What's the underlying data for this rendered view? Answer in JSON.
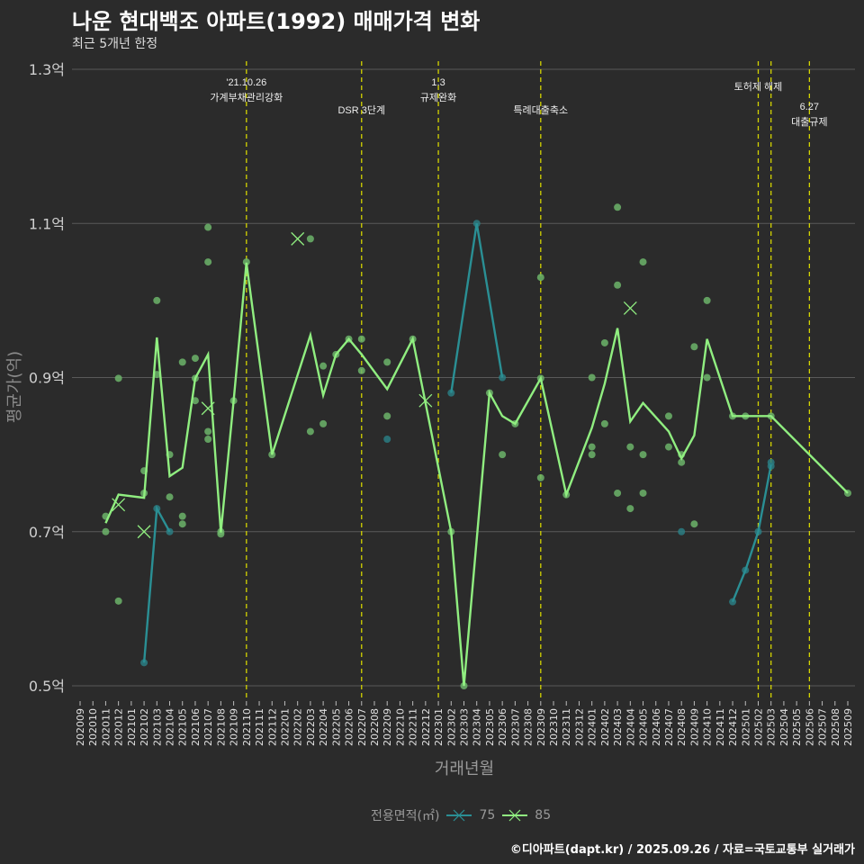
{
  "title": "나운 현대백조 아파트(1992) 매매가격 변화",
  "subtitle": "최근 5개년 한정",
  "caption": "©디아파트(dapt.kr) / 2025.09.26 / 자료=국토교통부 실거래가",
  "chart_data": {
    "type": "line",
    "xlabel": "거래년월",
    "ylabel": "평균가(억)",
    "ylim": [
      0.47,
      1.31
    ],
    "yticks": [
      0.5,
      0.7,
      0.9,
      1.1,
      1.3
    ],
    "ytick_labels": [
      "0.5억",
      "0.7억",
      "0.9억",
      "1.1억",
      "1.3억"
    ],
    "x": [
      "202009",
      "202010",
      "202011",
      "202012",
      "202101",
      "202102",
      "202103",
      "202104",
      "202105",
      "202106",
      "202107",
      "202108",
      "202109",
      "202110",
      "202111",
      "202112",
      "202201",
      "202202",
      "202203",
      "202204",
      "202205",
      "202206",
      "202207",
      "202208",
      "202209",
      "202210",
      "202211",
      "202212",
      "202301",
      "202302",
      "202303",
      "202304",
      "202305",
      "202306",
      "202307",
      "202308",
      "202309",
      "202310",
      "202311",
      "202312",
      "202401",
      "202402",
      "202403",
      "202404",
      "202405",
      "202406",
      "202407",
      "202408",
      "202409",
      "202410",
      "202411",
      "202412",
      "202501",
      "202502",
      "202503",
      "202504",
      "202505",
      "202506",
      "202507",
      "202508",
      "202509"
    ],
    "legend": {
      "title": "전용면적(㎡)",
      "position": "bottom"
    },
    "annotations": [
      {
        "month": "202110",
        "lines": [
          "'21.10.26",
          "가계부채관리강화"
        ]
      },
      {
        "month": "202207",
        "lines": [
          "DSR 3단계"
        ]
      },
      {
        "month": "202301",
        "lines": [
          "1.3",
          "규제완화"
        ]
      },
      {
        "month": "202309",
        "lines": [
          "특례대출축소"
        ]
      },
      {
        "month": "202502",
        "lines": [
          "토허제 해제"
        ]
      },
      {
        "month": "202503",
        "lines": []
      },
      {
        "month": "202506",
        "lines": [
          "6.27",
          "대출규제"
        ]
      }
    ],
    "series": [
      {
        "name": "75",
        "color": "#2a8f94",
        "segments": [
          [
            [
              "202102",
              0.53
            ],
            [
              "202103",
              0.73
            ],
            [
              "202104",
              0.7
            ]
          ],
          [
            [
              "202302",
              0.88
            ],
            [
              "202304",
              1.1
            ],
            [
              "202306",
              0.9
            ]
          ],
          [
            [
              "202412",
              0.609
            ],
            [
              "202501",
              0.65
            ],
            [
              "202502",
              0.7
            ],
            [
              "202503",
              0.787
            ]
          ]
        ],
        "points": [
          [
            "202102",
            0.53
          ],
          [
            "202103",
            0.73
          ],
          [
            "202104",
            0.7
          ],
          [
            "202209",
            0.82
          ],
          [
            "202302",
            0.88
          ],
          [
            "202304",
            1.1
          ],
          [
            "202306",
            0.9
          ],
          [
            "202408",
            0.7
          ],
          [
            "202412",
            0.609
          ],
          [
            "202501",
            0.65
          ],
          [
            "202502",
            0.7
          ],
          [
            "202503",
            0.79
          ],
          [
            "202503",
            0.785
          ]
        ],
        "x_marks": []
      },
      {
        "name": "85",
        "color": "#90ee80",
        "segments": [
          [
            [
              "202011",
              0.711
            ],
            [
              "202012",
              0.748
            ],
            [
              "202102",
              0.744
            ],
            [
              "202103",
              0.952
            ],
            [
              "202104",
              0.772
            ],
            [
              "202105",
              0.783
            ],
            [
              "202106",
              0.899
            ],
            [
              "202107",
              0.93
            ],
            [
              "202108",
              0.699
            ],
            [
              "202109",
              0.87
            ],
            [
              "202110",
              1.049
            ],
            [
              "202112",
              0.8
            ],
            [
              "202203",
              0.955
            ],
            [
              "202204",
              0.877
            ],
            [
              "202205",
              0.93
            ],
            [
              "202206",
              0.95
            ],
            [
              "202207",
              0.93
            ],
            [
              "202209",
              0.885
            ],
            [
              "202211",
              0.95
            ],
            [
              "202302",
              0.7
            ],
            [
              "202303",
              0.5
            ],
            [
              "202305",
              0.88
            ],
            [
              "202306",
              0.85
            ],
            [
              "202307",
              0.84
            ],
            [
              "202309",
              0.899
            ],
            [
              "202311",
              0.748
            ],
            [
              "202401",
              0.835
            ],
            [
              "202402",
              0.892
            ],
            [
              "202403",
              0.964
            ],
            [
              "202404",
              0.843
            ],
            [
              "202405",
              0.867
            ],
            [
              "202407",
              0.83
            ],
            [
              "202408",
              0.795
            ],
            [
              "202409",
              0.825
            ],
            [
              "202410",
              0.95
            ],
            [
              "202412",
              0.85
            ],
            [
              "202501",
              0.85
            ],
            [
              "202502",
              0.85
            ],
            [
              "202503",
              0.85
            ],
            [
              "202509",
              0.75
            ]
          ]
        ],
        "points": [
          [
            "202011",
            0.72
          ],
          [
            "202011",
            0.7
          ],
          [
            "202012",
            0.899
          ],
          [
            "202012",
            0.61
          ],
          [
            "202102",
            0.779
          ],
          [
            "202102",
            0.75
          ],
          [
            "202103",
            1.0
          ],
          [
            "202103",
            0.904
          ],
          [
            "202104",
            0.8
          ],
          [
            "202104",
            0.745
          ],
          [
            "202105",
            0.72
          ],
          [
            "202105",
            0.71
          ],
          [
            "202105",
            0.92
          ],
          [
            "202106",
            0.925
          ],
          [
            "202106",
            0.87
          ],
          [
            "202106",
            0.899
          ],
          [
            "202107",
            1.095
          ],
          [
            "202107",
            1.05
          ],
          [
            "202107",
            0.83
          ],
          [
            "202107",
            0.82
          ],
          [
            "202108",
            0.697
          ],
          [
            "202108",
            0.7
          ],
          [
            "202109",
            0.87
          ],
          [
            "202110",
            1.05
          ],
          [
            "202112",
            0.8
          ],
          [
            "202203",
            1.08
          ],
          [
            "202203",
            0.83
          ],
          [
            "202204",
            0.915
          ],
          [
            "202204",
            0.84
          ],
          [
            "202205",
            0.93
          ],
          [
            "202206",
            0.95
          ],
          [
            "202207",
            0.95
          ],
          [
            "202207",
            0.909
          ],
          [
            "202209",
            0.92
          ],
          [
            "202209",
            0.85
          ],
          [
            "202211",
            0.95
          ],
          [
            "202302",
            0.7
          ],
          [
            "202303",
            0.5
          ],
          [
            "202305",
            0.88
          ],
          [
            "202306",
            0.8
          ],
          [
            "202307",
            0.84
          ],
          [
            "202309",
            1.03
          ],
          [
            "202309",
            0.77
          ],
          [
            "202309",
            0.899
          ],
          [
            "202311",
            0.748
          ],
          [
            "202401",
            0.9
          ],
          [
            "202401",
            0.81
          ],
          [
            "202401",
            0.8
          ],
          [
            "202402",
            0.945
          ],
          [
            "202402",
            0.84
          ],
          [
            "202403",
            1.121
          ],
          [
            "202403",
            1.02
          ],
          [
            "202403",
            0.75
          ],
          [
            "202404",
            0.81
          ],
          [
            "202404",
            0.73
          ],
          [
            "202405",
            1.05
          ],
          [
            "202405",
            0.8
          ],
          [
            "202405",
            0.75
          ],
          [
            "202407",
            0.85
          ],
          [
            "202407",
            0.81
          ],
          [
            "202408",
            0.8
          ],
          [
            "202408",
            0.79
          ],
          [
            "202409",
            0.94
          ],
          [
            "202409",
            0.71
          ],
          [
            "202410",
            1.0
          ],
          [
            "202410",
            0.9
          ],
          [
            "202412",
            0.85
          ],
          [
            "202501",
            0.85
          ],
          [
            "202503",
            0.85
          ],
          [
            "202509",
            0.75
          ]
        ],
        "x_marks": [
          [
            "202012",
            0.735
          ],
          [
            "202102",
            0.7
          ],
          [
            "202107",
            0.86
          ],
          [
            "202202",
            1.08
          ],
          [
            "202212",
            0.87
          ],
          [
            "202404",
            0.99
          ]
        ]
      }
    ]
  }
}
